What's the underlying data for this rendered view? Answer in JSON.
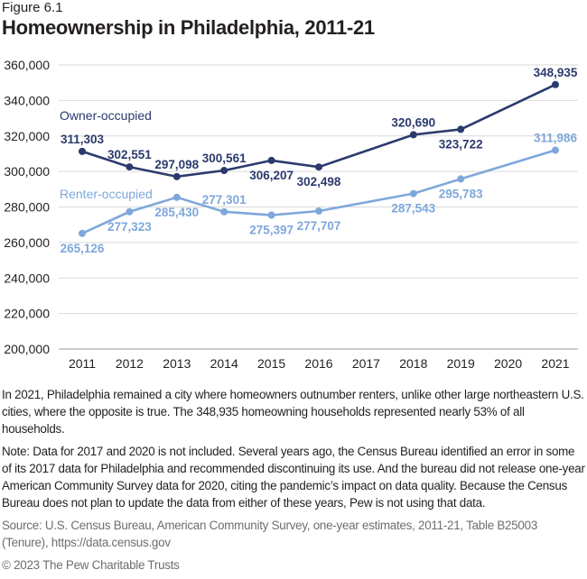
{
  "figure_label": "Figure 6.1",
  "chart_data": {
    "type": "line",
    "title": "Homeownership in Philadelphia, 2011-21",
    "categories": [
      "2011",
      "2012",
      "2013",
      "2014",
      "2015",
      "2016",
      "2017",
      "2018",
      "2019",
      "2020",
      "2021"
    ],
    "ylim": [
      200000,
      360000
    ],
    "yticks": [
      200000,
      220000,
      240000,
      260000,
      280000,
      300000,
      320000,
      340000,
      360000
    ],
    "ytick_labels": [
      "200,000",
      "220,000",
      "240,000",
      "260,000",
      "280,000",
      "300,000",
      "320,000",
      "340,000",
      "360,000"
    ],
    "grid": true,
    "series": [
      {
        "name": "Owner-occupied",
        "color": "#2b3a6d",
        "values": [
          311303,
          302551,
          297098,
          300561,
          306207,
          302498,
          null,
          320690,
          323722,
          null,
          348935
        ],
        "labels": [
          "311,303",
          "302,551",
          "297,098",
          "300,561",
          "306,207",
          "302,498",
          null,
          "320,690",
          "323,722",
          null,
          "348,935"
        ]
      },
      {
        "name": "Renter-occupied",
        "color": "#7ea7da",
        "values": [
          265126,
          277323,
          285430,
          277301,
          275397,
          277707,
          null,
          287543,
          295783,
          null,
          311986
        ],
        "labels": [
          "265,126",
          "277,323",
          "285,430",
          "277,301",
          "275,397",
          "277,707",
          null,
          "287,543",
          "295,783",
          null,
          "311,986"
        ]
      }
    ]
  },
  "body_text": "In 2021, Philadelphia remained a city where homeowners outnumber renters, unlike other large northeastern U.S. cities, where the opposite is true. The 348,935 homeowning households represented nearly 53% of all households.",
  "note": "Note: Data for 2017 and 2020 is not included. Several years ago, the Census Bureau identified an error in some of its 2017 data for Philadelphia and recommended discontinuing its use. And the bureau did not release one-year American Community Survey data for 2020, citing the pandemic’s impact on data quality. Because the Census Bureau does not plan to update the data from either of these years, Pew is not using that data.",
  "source": "Source: U.S. Census Bureau, American Community Survey, one-year estimates, 2011-21, Table B25003 (Tenure), https://data.census.gov",
  "copyright": "© 2023 The Pew Charitable Trusts"
}
